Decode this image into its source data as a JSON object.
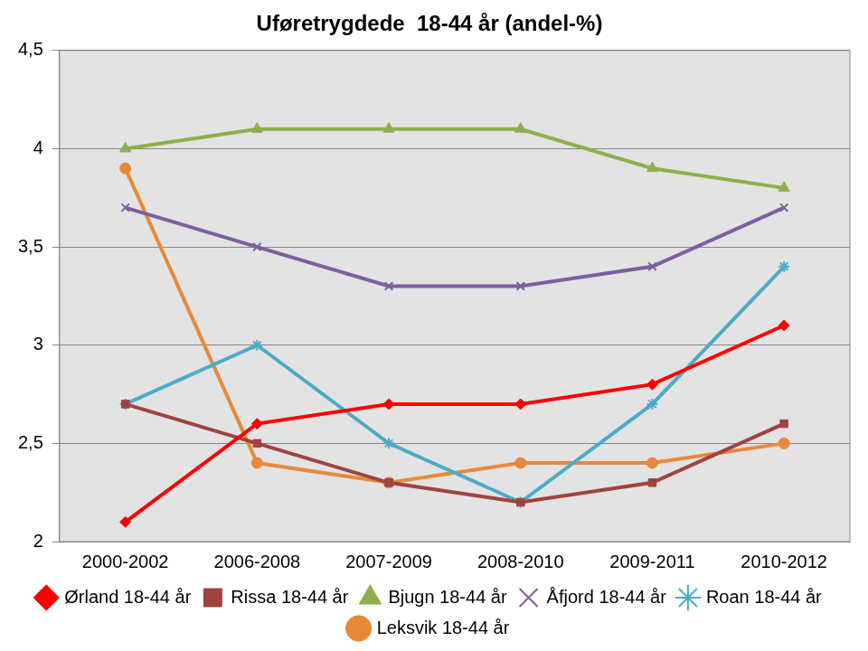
{
  "chart_data": {
    "type": "line",
    "title": "Uføretrygdede  18-44 år (andel-%)",
    "categories": [
      "2000-2002",
      "2006-2008",
      "2007-2009",
      "2008-2010",
      "2009-2011",
      "2010-2012"
    ],
    "series": [
      {
        "name": "Ørland 18-44 år",
        "color": "#ff0000",
        "marker": "diamond",
        "values": [
          2.1,
          2.6,
          2.7,
          2.7,
          2.8,
          3.1
        ]
      },
      {
        "name": "Rissa 18-44 år",
        "color": "#a0433f",
        "marker": "square",
        "values": [
          2.7,
          2.5,
          2.3,
          2.2,
          2.3,
          2.6
        ]
      },
      {
        "name": "Bjugn 18-44 år",
        "color": "#8db04a",
        "marker": "triangle",
        "values": [
          4.0,
          4.1,
          4.1,
          4.1,
          3.9,
          3.8
        ]
      },
      {
        "name": "Åfjord 18-44 år",
        "color": "#7d5fa0",
        "marker": "x",
        "values": [
          3.7,
          3.5,
          3.3,
          3.3,
          3.4,
          3.7
        ]
      },
      {
        "name": "Roan 18-44 år",
        "color": "#4bacc6",
        "marker": "star",
        "values": [
          2.7,
          3.0,
          2.5,
          2.2,
          2.7,
          3.4
        ]
      },
      {
        "name": "Leksvik 18-44 år",
        "color": "#e8893a",
        "marker": "circle",
        "values": [
          3.9,
          2.4,
          2.3,
          2.4,
          2.4,
          2.5
        ]
      }
    ],
    "ylim": [
      2,
      4.5
    ],
    "yticks": [
      2,
      {
        "value": 2.5,
        "label": "2,5"
      },
      3,
      {
        "value": 3.5,
        "label": "3,5"
      },
      4,
      {
        "value": 4.5,
        "label": "4,5"
      }
    ],
    "grid": true,
    "legend": "bottom"
  }
}
